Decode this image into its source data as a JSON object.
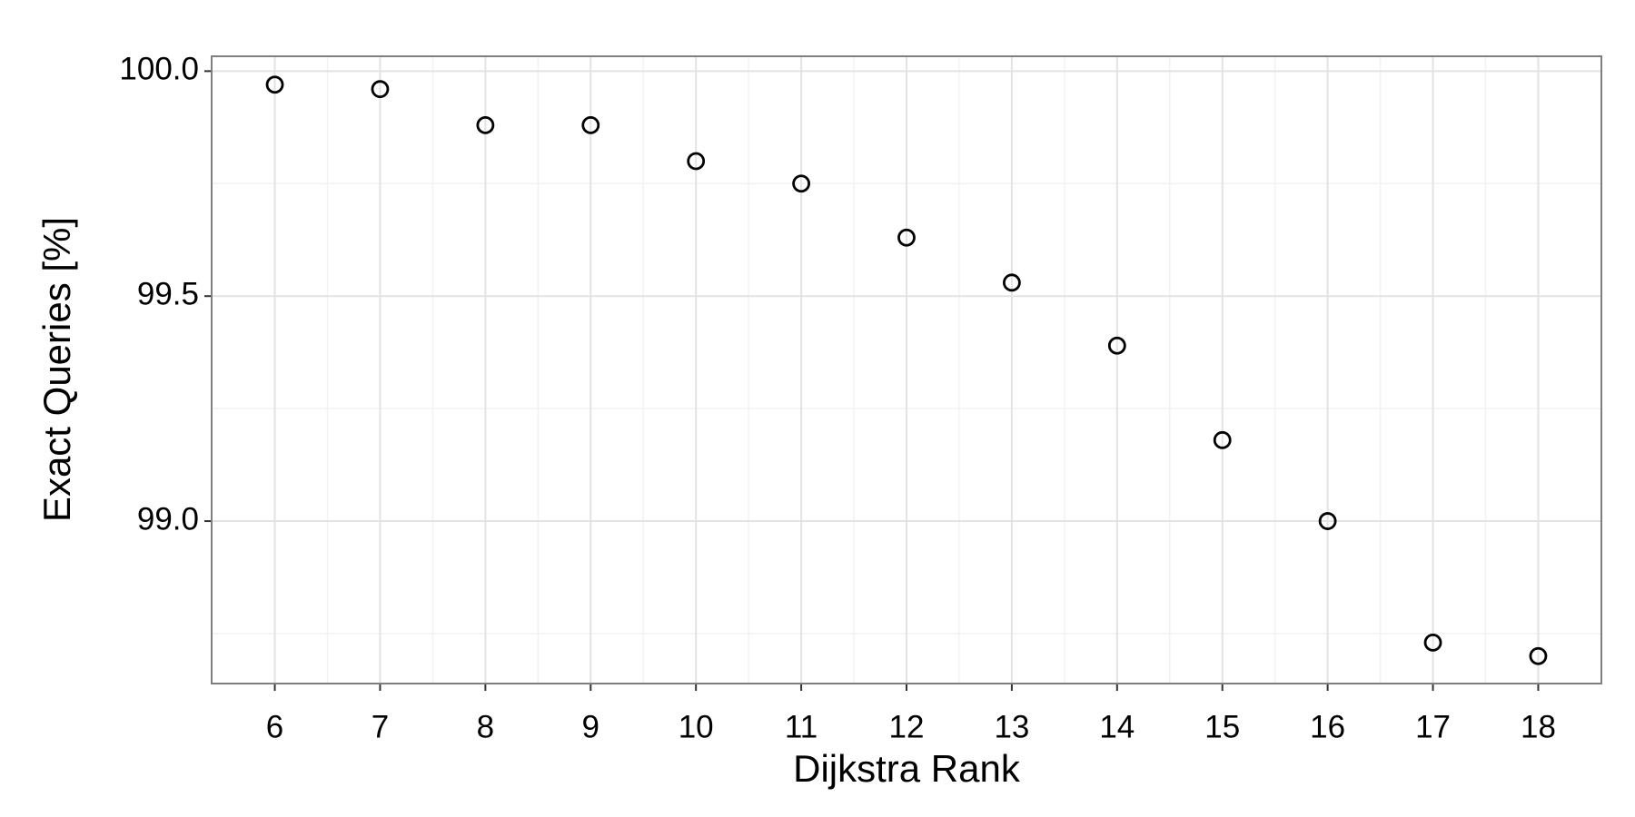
{
  "chart_data": {
    "type": "scatter",
    "x_label": "Dijkstra Rank",
    "y_label": "Exact Queries [%]",
    "x": [
      6,
      7,
      8,
      9,
      10,
      11,
      12,
      13,
      14,
      15,
      16,
      17,
      18
    ],
    "values": [
      99.97,
      99.96,
      99.88,
      99.88,
      99.8,
      99.75,
      99.63,
      99.53,
      99.39,
      99.18,
      99.0,
      98.73,
      98.7
    ],
    "color": "#000000",
    "xlim": [
      5.4,
      18.6
    ],
    "xticks": [
      6,
      7,
      8,
      9,
      10,
      11,
      12,
      13,
      14,
      15,
      16,
      17,
      18
    ],
    "ylim": [
      98.639,
      100.033
    ],
    "yticks": [
      {
        "value": 99.0,
        "label": "99.0"
      },
      99.5,
      {
        "value": 100.0,
        "label": "100.0"
      }
    ],
    "grid": true
  }
}
